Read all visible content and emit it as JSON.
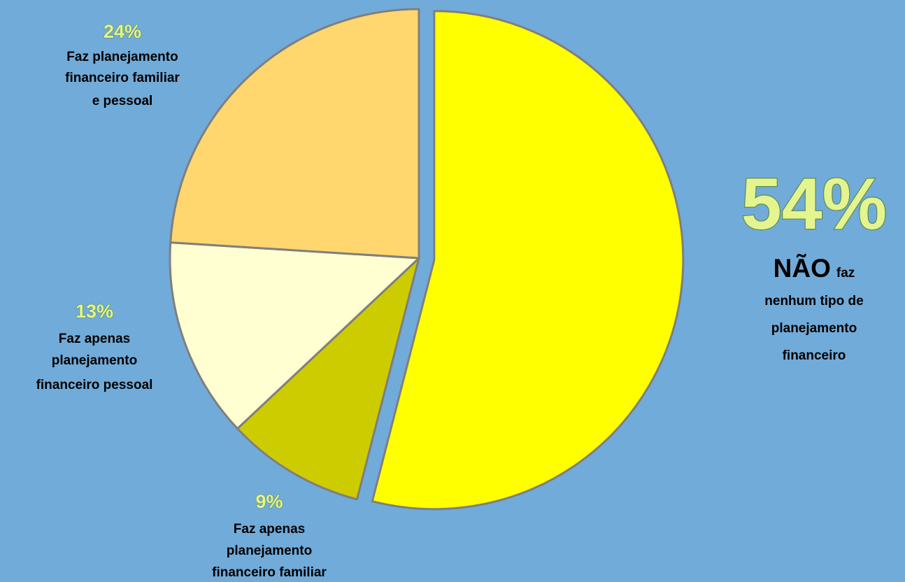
{
  "chart_data": {
    "type": "pie",
    "slices": [
      {
        "value": 54,
        "percent_label": "54%",
        "label_emphasis": "NÃO",
        "label_lines": [
          "faz",
          "nenhum tipo de",
          "planejamento",
          "financeiro"
        ],
        "color": "#ffff00"
      },
      {
        "value": 9,
        "percent_label": "9%",
        "label_lines": [
          "Faz apenas",
          "planejamento",
          "financeiro familiar"
        ],
        "color": "#cccc00"
      },
      {
        "value": 13,
        "percent_label": "13%",
        "label_lines": [
          "Faz apenas",
          "planejamento",
          "financeiro pessoal"
        ],
        "color": "#ffffd1"
      },
      {
        "value": 24,
        "percent_label": "24%",
        "label_lines": [
          "Faz planejamento",
          "financeiro familiar",
          "e pessoal"
        ],
        "color": "#ffd76e"
      }
    ],
    "start_angle": "12 o'clock",
    "direction": "clockwise",
    "exploded_slice": 0,
    "slice_border_color": "#7f7f7f",
    "legend": "none",
    "background_color": "#71abd9",
    "percent_text_color": "#e4f48f"
  }
}
